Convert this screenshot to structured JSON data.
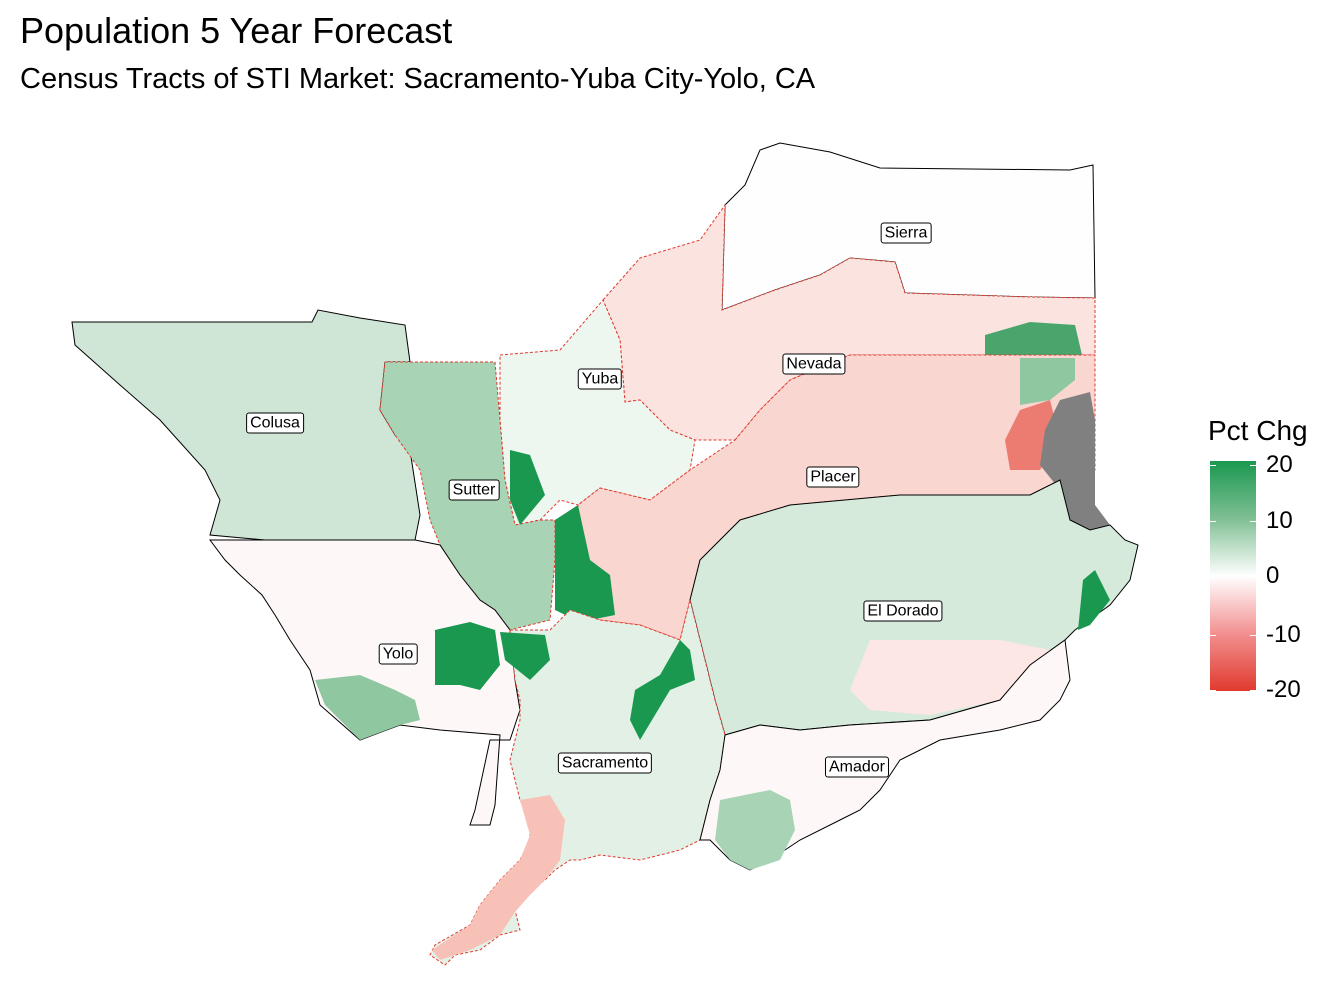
{
  "title": "Population 5 Year Forecast",
  "subtitle": "Census Tracts of STI Market: Sacramento-Yuba City-Yolo, CA",
  "legend": {
    "title": "Pct Chg",
    "ticks": [
      "20",
      "10",
      "0",
      "-10",
      "-20"
    ],
    "scale_min": -20,
    "scale_max": 20,
    "colors": {
      "high": "#1a9850",
      "mid": "#ffffff",
      "low": "#e03a2e",
      "no_data": "#808080"
    }
  },
  "counties": [
    {
      "name": "Sierra",
      "pct_chg_approx": 0
    },
    {
      "name": "Nevada",
      "pct_chg_approx": -5
    },
    {
      "name": "Yuba",
      "pct_chg_approx": 3
    },
    {
      "name": "Colusa",
      "pct_chg_approx": 7
    },
    {
      "name": "Sutter",
      "pct_chg_approx": 8
    },
    {
      "name": "Placer",
      "pct_chg_approx": -7
    },
    {
      "name": "El Dorado",
      "pct_chg_approx": 6
    },
    {
      "name": "Yolo",
      "pct_chg_approx": 1
    },
    {
      "name": "Sacramento",
      "pct_chg_approx": 5
    },
    {
      "name": "Amador",
      "pct_chg_approx": 1
    }
  ]
}
